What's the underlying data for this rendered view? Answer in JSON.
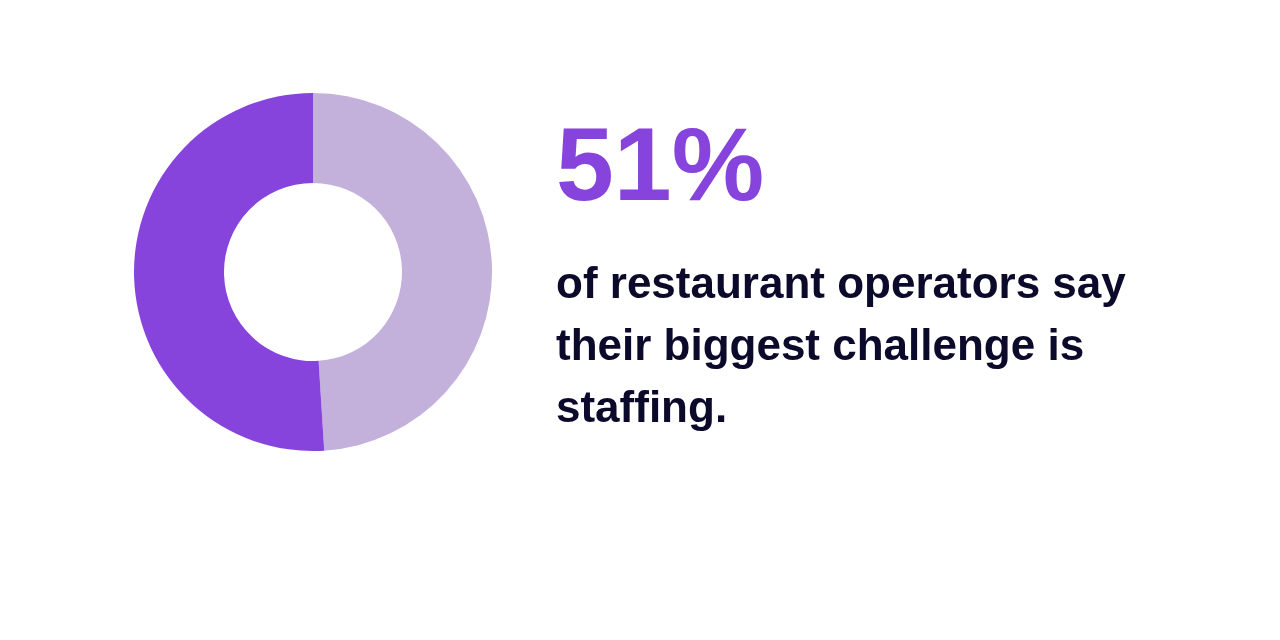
{
  "chart_data": {
    "type": "donut",
    "title": "51%",
    "subtitle": "of restaurant operators say their biggest challenge is staffing.",
    "categories": [
      null,
      null
    ],
    "values": [
      49,
      51
    ],
    "colors": [
      "#c3b0db",
      "#8744dc"
    ]
  }
}
